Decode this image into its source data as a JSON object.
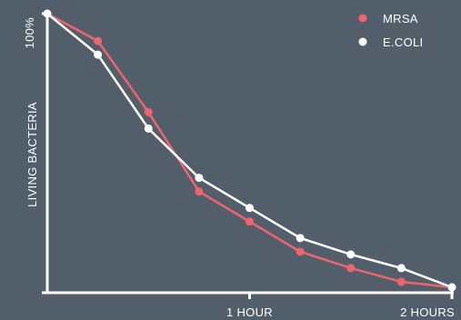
{
  "chart_data": {
    "type": "line",
    "title": "",
    "xlabel": "",
    "ylabel": "LIVING BACTERIA",
    "x": [
      0,
      0.25,
      0.5,
      0.75,
      1.0,
      1.25,
      1.5,
      1.75,
      2.0
    ],
    "xlim": [
      0,
      2
    ],
    "ylim": [
      0,
      100
    ],
    "x_ticks": [
      {
        "value": 1,
        "label": "1 HOUR"
      },
      {
        "value": 2,
        "label": "2 HOURS"
      }
    ],
    "y_ticks": [
      {
        "value": 100,
        "label": "100%"
      }
    ],
    "series": [
      {
        "name": "MRSA",
        "color": "#f0646d",
        "values": [
          100,
          90,
          64,
          35,
          24,
          13,
          7,
          2,
          0
        ]
      },
      {
        "name": "E.COLI",
        "color": "#ffffff",
        "values": [
          100,
          85,
          58,
          40,
          29,
          18,
          12,
          7,
          0
        ]
      }
    ],
    "legend_position": "top-right",
    "grid": false
  }
}
